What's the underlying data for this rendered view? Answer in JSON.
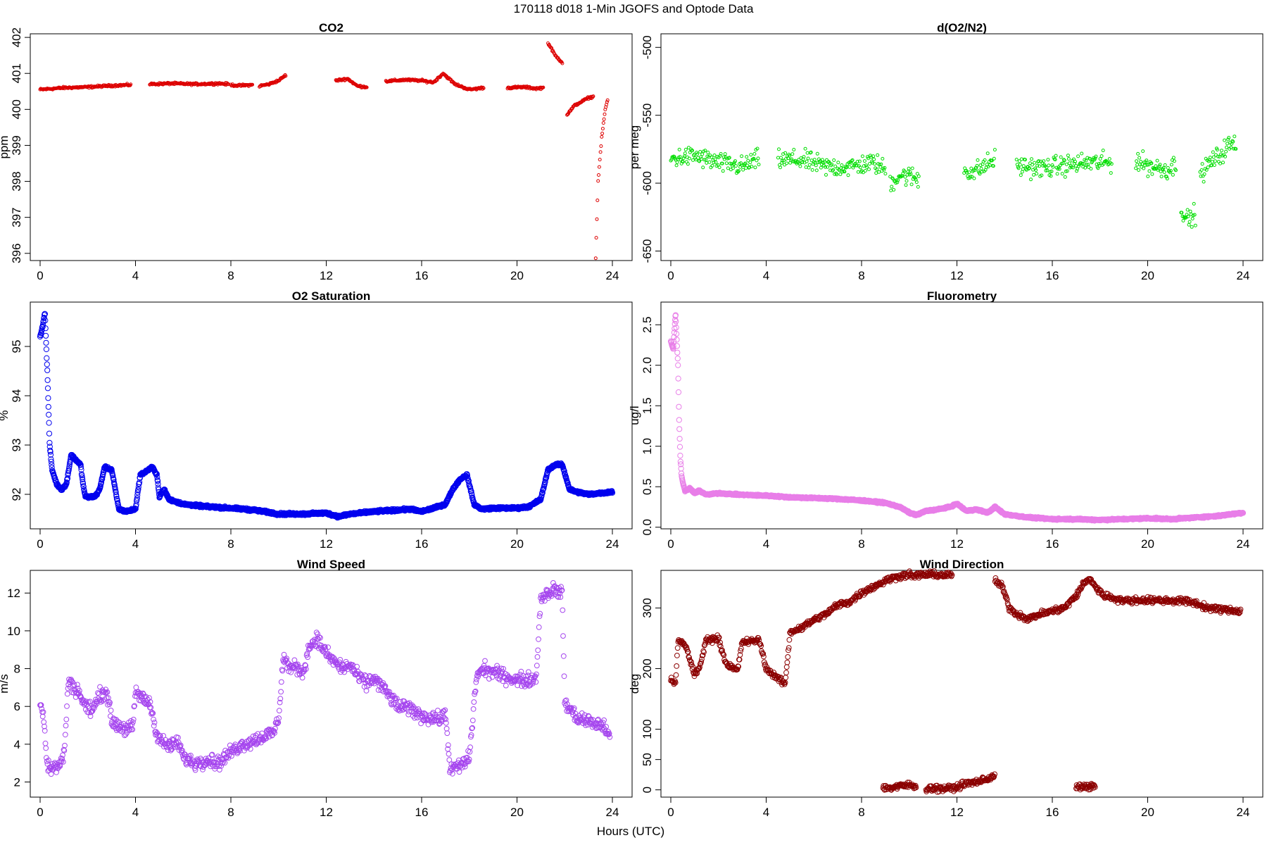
{
  "page_title": "170118   d018   1-Min  JGOFS and Optode Data",
  "x_axis_label": "Hours (UTC)",
  "chart_data": [
    {
      "type": "scatter",
      "title": "CO2",
      "ylabel": "ppm",
      "color": "#dd0000",
      "xlim": [
        0,
        24
      ],
      "ylim": [
        395.8,
        402.1
      ],
      "xticks": [
        0,
        4,
        8,
        12,
        16,
        20,
        24
      ],
      "yticks": [
        396,
        397,
        398,
        399,
        400,
        401,
        402
      ],
      "ytick_rotate": true,
      "segments": [
        {
          "x": [
            0.0,
            1.0,
            2.0,
            3.0,
            3.8
          ],
          "y": [
            400.55,
            400.6,
            400.62,
            400.66,
            400.68
          ]
        },
        {
          "x": [
            4.6,
            5.5,
            6.5,
            7.5,
            7.9
          ],
          "y": [
            400.7,
            400.72,
            400.7,
            400.72,
            400.7
          ]
        },
        {
          "x": [
            8.0,
            8.3,
            8.9
          ],
          "y": [
            400.68,
            400.66,
            400.68
          ]
        },
        {
          "x": [
            9.2,
            9.6,
            10.0,
            10.3
          ],
          "y": [
            400.65,
            400.7,
            400.8,
            400.95
          ]
        },
        {
          "x": [
            12.4,
            12.9,
            13.3,
            13.7
          ],
          "y": [
            400.8,
            400.85,
            400.65,
            400.62
          ]
        },
        {
          "x": [
            14.5,
            15.3,
            16.0,
            16.5,
            16.9,
            17.4,
            18.0,
            18.6
          ],
          "y": [
            400.78,
            400.82,
            400.8,
            400.75,
            401.0,
            400.7,
            400.55,
            400.6
          ]
        },
        {
          "x": [
            19.6,
            20.3,
            20.8,
            21.1
          ],
          "y": [
            400.6,
            400.62,
            400.58,
            400.6
          ]
        },
        {
          "x": [
            21.3,
            21.6,
            21.9
          ],
          "y": [
            401.85,
            401.5,
            401.3
          ]
        },
        {
          "x": [
            22.1,
            22.4,
            22.8,
            23.0,
            23.2
          ],
          "y": [
            399.85,
            400.1,
            400.25,
            400.32,
            400.35
          ]
        },
        {
          "x": [
            23.3,
            23.4,
            23.55,
            23.7,
            23.8
          ],
          "y": [
            395.9,
            398.0,
            399.2,
            400.0,
            400.25
          ]
        }
      ]
    },
    {
      "type": "scatter",
      "title": "d(O2/N2)",
      "ylabel": "per meg",
      "color": "#00dd00",
      "xlim": [
        0,
        24
      ],
      "ylim": [
        -657,
        -490
      ],
      "xticks": [
        0,
        4,
        8,
        12,
        16,
        20,
        24
      ],
      "yticks": [
        -650,
        -600,
        -550,
        -500
      ],
      "ytick_rotate": true,
      "segments": [
        {
          "x": [
            0.0,
            1.0,
            2.0,
            3.0,
            3.7
          ],
          "y": [
            -582,
            -580,
            -585,
            -588,
            -582
          ]
        },
        {
          "x": [
            4.5,
            5.5,
            6.5,
            7.5,
            8.5,
            9.0
          ],
          "y": [
            -583,
            -583,
            -588,
            -588,
            -585,
            -590
          ]
        },
        {
          "x": [
            9.2,
            9.6,
            10.0,
            10.4
          ],
          "y": [
            -600,
            -594,
            -595,
            -597
          ]
        },
        {
          "x": [
            12.3,
            12.7,
            13.1,
            13.6
          ],
          "y": [
            -590,
            -592,
            -588,
            -582
          ]
        },
        {
          "x": [
            14.5,
            15.5,
            16.5,
            17.5,
            18.5
          ],
          "y": [
            -587,
            -589,
            -587,
            -585,
            -585
          ]
        },
        {
          "x": [
            19.5,
            20.2,
            20.9,
            21.2
          ],
          "y": [
            -583,
            -588,
            -590,
            -585
          ]
        },
        {
          "x": [
            21.4,
            21.7,
            22.0
          ],
          "y": [
            -618,
            -628,
            -622
          ]
        },
        {
          "x": [
            22.2,
            22.6,
            23.0,
            23.4,
            23.7
          ],
          "y": [
            -595,
            -585,
            -580,
            -572,
            -572
          ]
        }
      ]
    },
    {
      "type": "scatter",
      "title": "O2 Saturation",
      "ylabel": "%",
      "color": "#0000ee",
      "xlim": [
        0,
        24
      ],
      "ylim": [
        91.3,
        95.9
      ],
      "xticks": [
        0,
        4,
        8,
        12,
        16,
        20,
        24
      ],
      "yticks": [
        92,
        93,
        94,
        95
      ],
      "ytick_rotate": true,
      "segments": [
        {
          "x": [
            0.0,
            0.1,
            0.2,
            0.3,
            0.4,
            0.5,
            0.7,
            0.9,
            1.1,
            1.3,
            1.5,
            1.7,
            1.8,
            1.9,
            2.3,
            2.5,
            2.7,
            3.0,
            3.3,
            3.6,
            4.0,
            4.2,
            4.4,
            4.7,
            4.9,
            5.0,
            5.2,
            5.4,
            6.0,
            7.0,
            8.0,
            9.0,
            10.0,
            11.0,
            12.0,
            12.5,
            13.0,
            14.0,
            15.0,
            15.5,
            16.0,
            16.5,
            17.0,
            17.3,
            17.6,
            17.9,
            18.2,
            18.5,
            19.0,
            20.0,
            20.5,
            21.0,
            21.3,
            21.6,
            21.9,
            22.2,
            22.5,
            23.0,
            24.0
          ],
          "y": [
            95.2,
            95.4,
            95.7,
            94.5,
            93.0,
            92.5,
            92.2,
            92.1,
            92.2,
            92.8,
            92.7,
            92.6,
            92.2,
            91.95,
            91.95,
            92.1,
            92.55,
            92.5,
            91.7,
            91.65,
            91.7,
            92.4,
            92.45,
            92.55,
            92.4,
            91.95,
            92.1,
            91.9,
            91.8,
            91.75,
            91.72,
            91.68,
            91.6,
            91.6,
            91.62,
            91.55,
            91.6,
            91.65,
            91.68,
            91.7,
            91.65,
            91.72,
            91.8,
            92.1,
            92.3,
            92.4,
            91.8,
            91.7,
            91.72,
            91.72,
            91.75,
            91.9,
            92.5,
            92.6,
            92.6,
            92.1,
            92.05,
            92.0,
            92.05
          ]
        }
      ]
    },
    {
      "type": "scatter",
      "title": "Fluorometry",
      "ylabel": "ug/l",
      "color": "#e87ee8",
      "xlim": [
        0,
        24
      ],
      "ylim": [
        -0.02,
        2.78
      ],
      "xticks": [
        0,
        4,
        8,
        12,
        16,
        20,
        24
      ],
      "yticks": [
        0.0,
        0.5,
        1.0,
        1.5,
        2.0,
        2.5
      ],
      "ytick_labels": [
        "0.0",
        "0.5",
        "1.0",
        "1.5",
        "2.0",
        "2.5"
      ],
      "ytick_rotate": true,
      "segments": [
        {
          "x": [
            0.0,
            0.1,
            0.2,
            0.3,
            0.35,
            0.4,
            0.45,
            0.5,
            0.6,
            0.8,
            1.0,
            1.2,
            1.5,
            2.0,
            3.0,
            4.0,
            5.0,
            6.0,
            7.0,
            8.0,
            9.0,
            9.6,
            10.0,
            10.3,
            10.7,
            11.2,
            11.7,
            12.0,
            12.4,
            12.8,
            13.3,
            13.6,
            14.0,
            15.0,
            16.0,
            17.0,
            18.0,
            19.0,
            20.0,
            21.0,
            22.0,
            23.0,
            24.0
          ],
          "y": [
            2.3,
            2.2,
            2.65,
            2.0,
            1.3,
            0.85,
            0.65,
            0.55,
            0.45,
            0.48,
            0.42,
            0.45,
            0.4,
            0.42,
            0.4,
            0.39,
            0.37,
            0.36,
            0.35,
            0.33,
            0.3,
            0.25,
            0.18,
            0.15,
            0.2,
            0.22,
            0.25,
            0.29,
            0.2,
            0.22,
            0.18,
            0.25,
            0.16,
            0.12,
            0.1,
            0.1,
            0.09,
            0.1,
            0.11,
            0.1,
            0.12,
            0.14,
            0.18
          ]
        }
      ]
    },
    {
      "type": "scatter",
      "title": "Wind Speed",
      "ylabel": "m/s",
      "color": "#a545ee",
      "xlim": [
        0,
        24
      ],
      "ylim": [
        1.2,
        13.2
      ],
      "xticks": [
        0,
        4,
        8,
        12,
        16,
        20,
        24
      ],
      "yticks": [
        2,
        4,
        6,
        8,
        10,
        12
      ],
      "ytick_rotate": false,
      "segments": [
        {
          "x": [
            0.0,
            0.15,
            0.3,
            0.5,
            0.8,
            1.0,
            1.2,
            1.4,
            1.6,
            1.9,
            2.2,
            2.5,
            2.8,
            3.0,
            3.3,
            3.6,
            3.9,
            4.0,
            4.3,
            4.6,
            4.9,
            5.2,
            5.5,
            5.8,
            6.0,
            6.5,
            7.0,
            7.5,
            8.0,
            8.5,
            9.0,
            9.5,
            9.8,
            10.0,
            10.2,
            10.5,
            10.8,
            11.0,
            11.3,
            11.6,
            12.0,
            12.3,
            12.7,
            13.0,
            13.3,
            13.7,
            14.0,
            14.5,
            15.0,
            15.5,
            16.0,
            16.5,
            16.8,
            17.0,
            17.2,
            17.5,
            17.8,
            18.0,
            18.3,
            18.6,
            19.0,
            19.5,
            20.0,
            20.5,
            20.8,
            21.0,
            21.3,
            21.6,
            21.9,
            22.0,
            22.2,
            22.5,
            23.0,
            23.5,
            23.9
          ],
          "y": [
            6.2,
            5.5,
            2.8,
            2.7,
            2.9,
            3.4,
            7.5,
            7.0,
            6.8,
            6.0,
            5.8,
            6.6,
            6.8,
            5.2,
            5.0,
            4.8,
            4.9,
            6.8,
            6.4,
            6.2,
            4.5,
            4.0,
            3.9,
            4.1,
            3.3,
            3.0,
            3.2,
            3.0,
            3.6,
            4.0,
            4.2,
            4.5,
            4.6,
            5.4,
            8.6,
            8.0,
            8.1,
            7.7,
            9.2,
            9.6,
            8.8,
            8.4,
            8.0,
            8.2,
            7.6,
            7.2,
            7.5,
            6.8,
            6.0,
            5.9,
            5.5,
            5.4,
            5.3,
            5.6,
            2.6,
            2.8,
            3.0,
            3.3,
            7.6,
            8.0,
            7.8,
            7.6,
            7.4,
            7.4,
            7.5,
            11.8,
            12.0,
            12.2,
            11.9,
            6.2,
            5.9,
            5.4,
            5.2,
            5.0,
            4.6
          ]
        }
      ]
    },
    {
      "type": "scatter",
      "title": "Wind Direction",
      "ylabel": "deg",
      "color": "#8b0000",
      "xlim": [
        0,
        24
      ],
      "ylim": [
        -12,
        362
      ],
      "xticks": [
        0,
        4,
        8,
        12,
        16,
        20,
        24
      ],
      "yticks": [
        0,
        50,
        100,
        200,
        300
      ],
      "ytick_rotate": true,
      "segments": [
        {
          "x": [
            0.0,
            0.2,
            0.3,
            0.6,
            1.0,
            1.2,
            1.5,
            1.7,
            2.0,
            2.3,
            2.6,
            2.8,
            3.0,
            3.3,
            3.7,
            4.0,
            4.3,
            4.6,
            4.8,
            5.0,
            5.5,
            6.0,
            6.5,
            7.0,
            7.5,
            8.0,
            8.5,
            9.0,
            9.5,
            10.0,
            10.2,
            10.5,
            11.0,
            11.5,
            11.8
          ],
          "y": [
            180,
            175,
            245,
            240,
            190,
            200,
            250,
            248,
            250,
            210,
            200,
            197,
            245,
            244,
            248,
            200,
            190,
            180,
            175,
            260,
            268,
            280,
            290,
            305,
            310,
            325,
            335,
            345,
            352,
            355,
            352,
            355,
            355,
            354,
            355
          ]
        },
        {
          "x": [
            13.6,
            13.9,
            14.2,
            14.5,
            15.0,
            15.5,
            16.0,
            16.5,
            17.0,
            17.3,
            17.6,
            17.9,
            18.2,
            19.0,
            20.0,
            21.0,
            21.5,
            22.0,
            22.5,
            23.0,
            23.5,
            23.9
          ],
          "y": [
            345,
            335,
            300,
            290,
            282,
            290,
            295,
            300,
            320,
            340,
            348,
            330,
            320,
            312,
            313,
            312,
            312,
            308,
            300,
            298,
            296,
            295
          ]
        },
        {
          "x": [
            8.9,
            9.2,
            9.6,
            10.0,
            10.3
          ],
          "y": [
            4,
            3,
            6,
            8,
            5
          ]
        },
        {
          "x": [
            10.7,
            11.0,
            11.4,
            11.7,
            12.0,
            12.3,
            12.7,
            13.0,
            13.3,
            13.6
          ],
          "y": [
            2,
            3,
            2,
            3,
            4,
            10,
            12,
            15,
            18,
            25
          ]
        },
        {
          "x": [
            17.0,
            17.1,
            17.6,
            17.8
          ],
          "y": [
            3,
            5,
            4,
            8
          ]
        }
      ]
    }
  ]
}
